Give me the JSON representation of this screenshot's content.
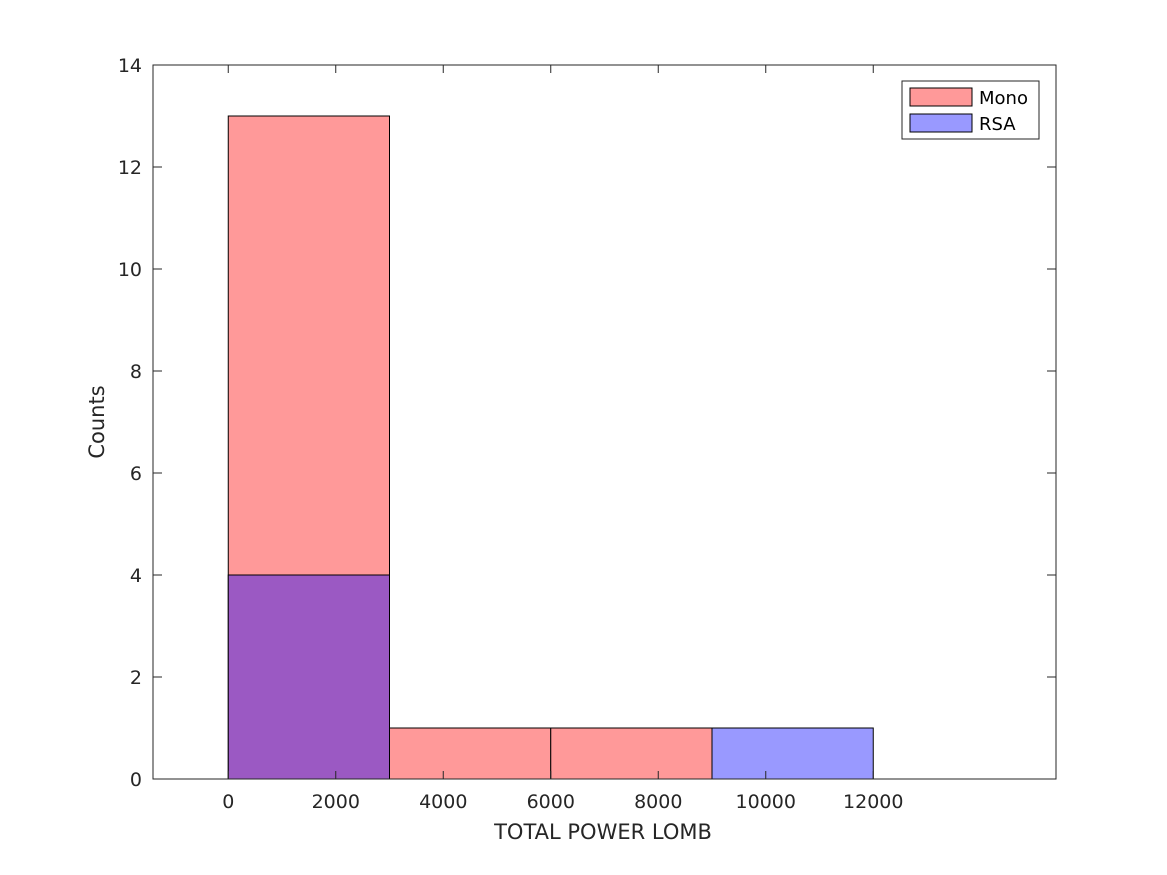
{
  "chart_data": {
    "type": "bar",
    "subtype": "overlapping-histogram",
    "title": "",
    "xlabel": "TOTAL POWER LOMB",
    "ylabel": "Counts",
    "xlim": [
      -1400,
      15400
    ],
    "ylim": [
      0,
      14
    ],
    "xticks": [
      0,
      2000,
      4000,
      6000,
      8000,
      10000,
      12000
    ],
    "xtick_labels": [
      "0",
      "2000",
      "4000",
      "6000",
      "8000",
      "10000",
      "12000"
    ],
    "yticks": [
      0,
      2,
      4,
      6,
      8,
      10,
      12,
      14
    ],
    "ytick_labels": [
      "0",
      "2",
      "4",
      "6",
      "8",
      "10",
      "12",
      "14"
    ],
    "bin_edges": [
      0,
      3000,
      6000,
      9000,
      12000
    ],
    "grid": false,
    "legend_position": "top-right",
    "overlap_color": "#9b59c3",
    "series": [
      {
        "name": "Mono",
        "color": "#ff9999",
        "values": [
          13,
          1,
          1,
          0
        ]
      },
      {
        "name": "RSA",
        "color": "#9999ff",
        "values": [
          4,
          0,
          0,
          1
        ]
      }
    ]
  }
}
